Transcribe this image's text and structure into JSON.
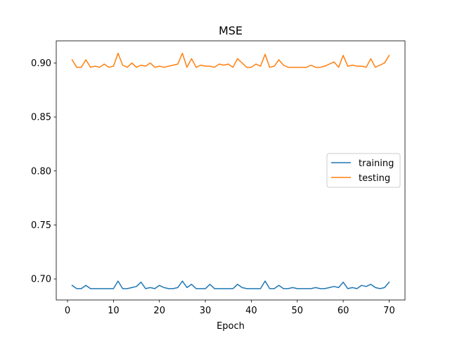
{
  "chart_data": {
    "type": "line",
    "title": "MSE",
    "xlabel": "Epoch",
    "ylabel": "",
    "xlim": [
      -2.45,
      73.45
    ],
    "ylim": [
      0.6805,
      0.9205
    ],
    "xticks": [
      0,
      10,
      20,
      30,
      40,
      50,
      60,
      70
    ],
    "yticks": [
      0.7,
      0.75,
      0.8,
      0.85,
      0.9
    ],
    "ytick_labels": [
      "0.70",
      "0.75",
      "0.80",
      "0.85",
      "0.90"
    ],
    "grid": false,
    "legend_position": "center-right",
    "x": [
      1,
      2,
      3,
      4,
      5,
      6,
      7,
      8,
      9,
      10,
      11,
      12,
      13,
      14,
      15,
      16,
      17,
      18,
      19,
      20,
      21,
      22,
      23,
      24,
      25,
      26,
      27,
      28,
      29,
      30,
      31,
      32,
      33,
      34,
      35,
      36,
      37,
      38,
      39,
      40,
      41,
      42,
      43,
      44,
      45,
      46,
      47,
      48,
      49,
      50,
      51,
      52,
      53,
      54,
      55,
      56,
      57,
      58,
      59,
      60,
      61,
      62,
      63,
      64,
      65,
      66,
      67,
      68,
      69,
      70
    ],
    "series": [
      {
        "name": "training",
        "color": "#1f77b4",
        "values": [
          0.694,
          0.691,
          0.691,
          0.694,
          0.691,
          0.691,
          0.691,
          0.691,
          0.691,
          0.691,
          0.698,
          0.691,
          0.691,
          0.692,
          0.693,
          0.697,
          0.691,
          0.692,
          0.691,
          0.694,
          0.692,
          0.691,
          0.691,
          0.692,
          0.698,
          0.692,
          0.695,
          0.691,
          0.691,
          0.691,
          0.695,
          0.691,
          0.691,
          0.691,
          0.691,
          0.691,
          0.695,
          0.692,
          0.691,
          0.691,
          0.691,
          0.691,
          0.698,
          0.691,
          0.691,
          0.694,
          0.691,
          0.691,
          0.692,
          0.691,
          0.691,
          0.691,
          0.691,
          0.692,
          0.691,
          0.691,
          0.692,
          0.693,
          0.692,
          0.697,
          0.691,
          0.692,
          0.691,
          0.694,
          0.693,
          0.695,
          0.692,
          0.691,
          0.692,
          0.697
        ]
      },
      {
        "name": "testing",
        "color": "#ff7f0e",
        "values": [
          0.903,
          0.896,
          0.896,
          0.903,
          0.896,
          0.897,
          0.896,
          0.899,
          0.896,
          0.897,
          0.909,
          0.898,
          0.896,
          0.9,
          0.896,
          0.898,
          0.897,
          0.9,
          0.896,
          0.897,
          0.896,
          0.897,
          0.898,
          0.899,
          0.909,
          0.896,
          0.904,
          0.896,
          0.898,
          0.897,
          0.897,
          0.896,
          0.899,
          0.898,
          0.899,
          0.896,
          0.904,
          0.9,
          0.896,
          0.896,
          0.899,
          0.897,
          0.908,
          0.896,
          0.897,
          0.903,
          0.898,
          0.896,
          0.896,
          0.896,
          0.896,
          0.896,
          0.898,
          0.896,
          0.896,
          0.897,
          0.899,
          0.901,
          0.896,
          0.907,
          0.897,
          0.898,
          0.897,
          0.897,
          0.896,
          0.904,
          0.896,
          0.898,
          0.9,
          0.907
        ]
      }
    ]
  }
}
